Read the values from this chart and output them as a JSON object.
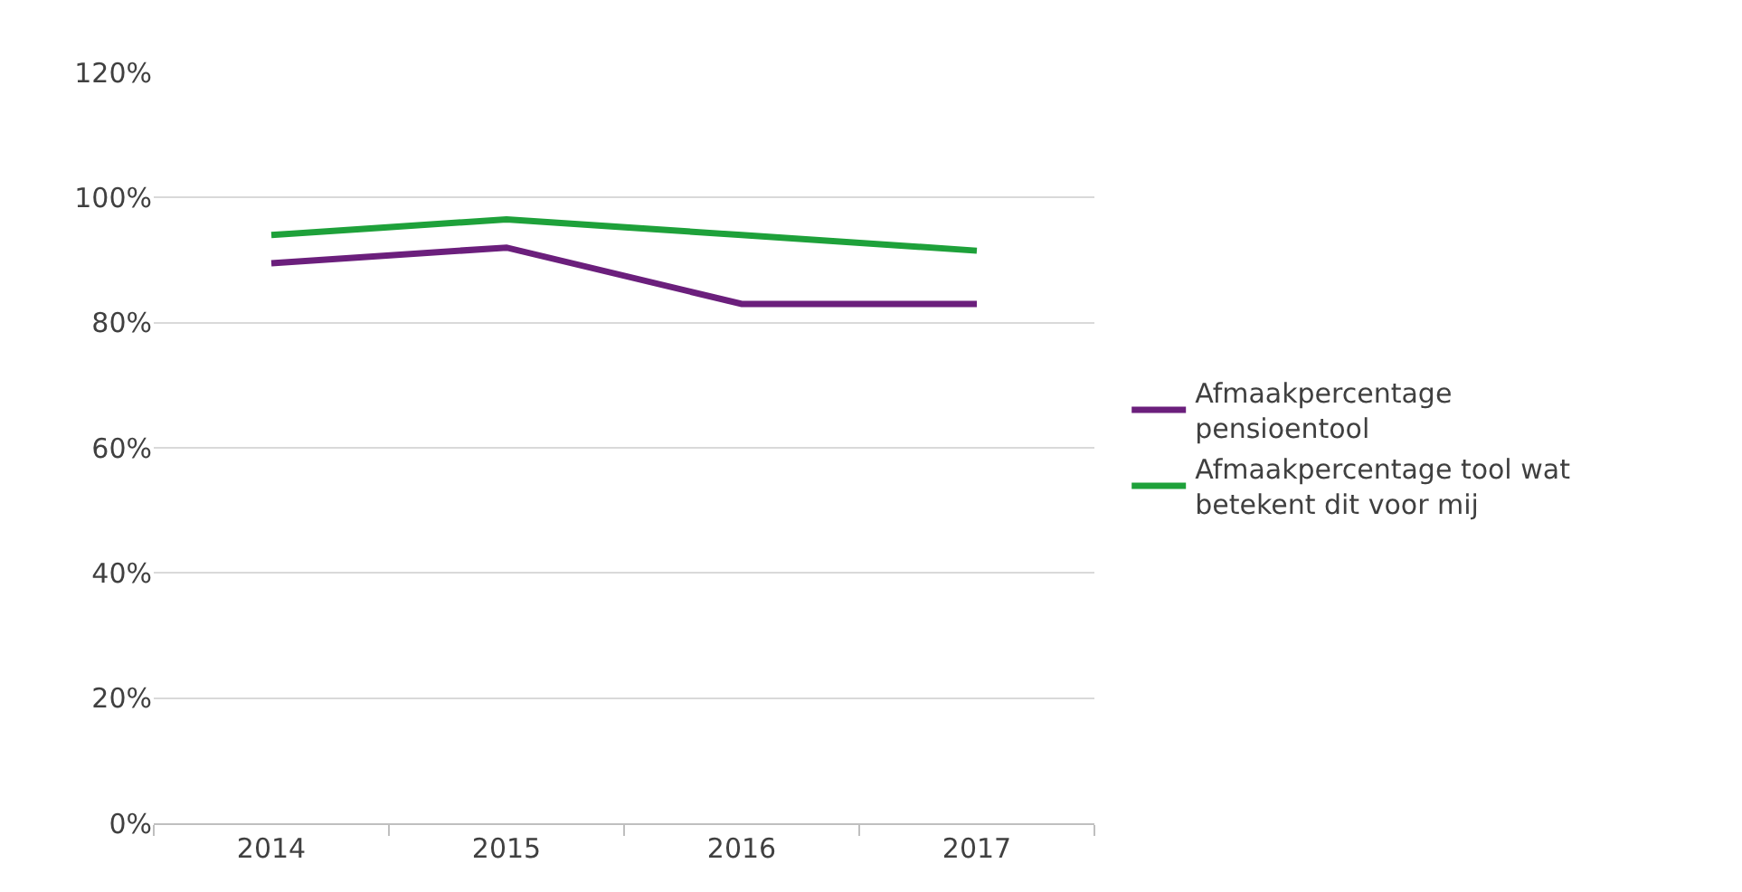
{
  "chart_data": {
    "type": "line",
    "categories": [
      "2014",
      "2015",
      "2016",
      "2017"
    ],
    "series": [
      {
        "name": "Afmaakpercentage pensioentool",
        "color": "#6b1f7c",
        "values": [
          89.5,
          92,
          83,
          83
        ]
      },
      {
        "name": "Afmaakpercentage tool wat betekent dit voor mij",
        "color": "#1ea13a",
        "values": [
          94,
          96.5,
          94,
          91.5
        ]
      }
    ],
    "ylim": [
      0,
      120
    ],
    "yticks": [
      {
        "value": 0,
        "label": "0%"
      },
      {
        "value": 20,
        "label": "20%"
      },
      {
        "value": 40,
        "label": "40%"
      },
      {
        "value": 60,
        "label": "60%"
      },
      {
        "value": 80,
        "label": "80%"
      },
      {
        "value": 100,
        "label": "100%"
      },
      {
        "value": 120,
        "label": "120%"
      }
    ],
    "grid": "y",
    "legend": "right",
    "marker": "none",
    "line_style": "solid"
  }
}
